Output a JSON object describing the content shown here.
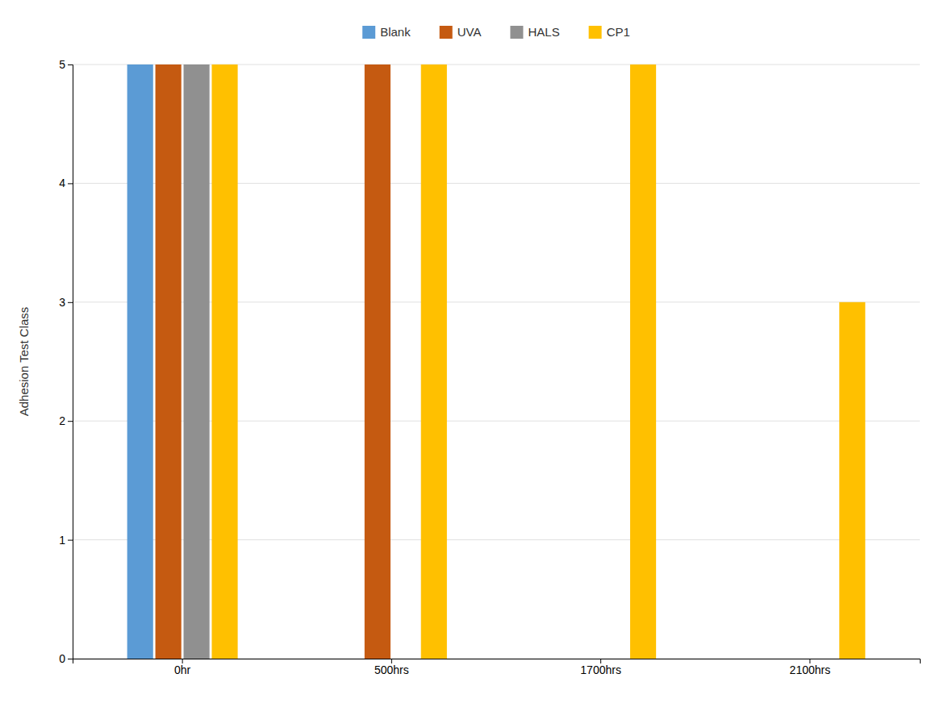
{
  "chart_data": {
    "type": "bar",
    "categories": [
      "0hr",
      "500hrs",
      "1700hrs",
      "2100hrs"
    ],
    "series": [
      {
        "name": "Blank",
        "color": "#5B9BD5",
        "values": [
          5,
          0,
          0,
          0
        ]
      },
      {
        "name": "UVA",
        "color": "#C55A11",
        "values": [
          5,
          5,
          0,
          0
        ]
      },
      {
        "name": "HALS",
        "color": "#909090",
        "values": [
          5,
          0,
          0,
          0
        ]
      },
      {
        "name": "CP1",
        "color": "#FFC000",
        "values": [
          5,
          5,
          5,
          3
        ]
      }
    ],
    "ylabel": "Adhesion Test Class",
    "ylim": [
      0,
      5
    ],
    "yticks": [
      0,
      1,
      2,
      3,
      4,
      5
    ],
    "grid": true,
    "legend": "top"
  }
}
